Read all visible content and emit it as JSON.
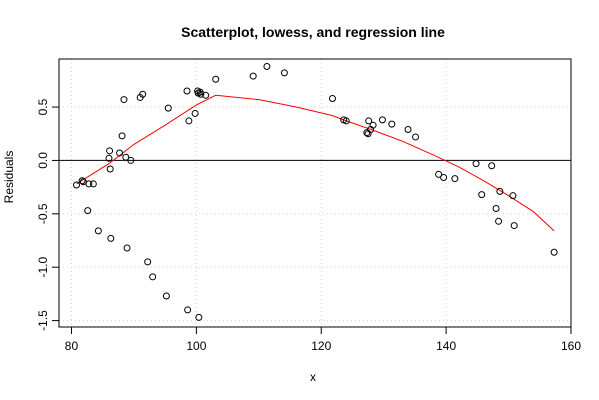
{
  "chart_data": {
    "type": "scatter",
    "title": "Scatterplot, lowess, and regression line",
    "xlabel": "x",
    "ylabel": "Residuals",
    "xlim": [
      78,
      160
    ],
    "ylim": [
      -1.56,
      0.95
    ],
    "grid": true,
    "x_ticks": [
      80,
      100,
      120,
      140,
      160
    ],
    "x_tick_labels": [
      "80",
      "100",
      "120",
      "140",
      "160"
    ],
    "y_ticks": [
      -1.5,
      -1.0,
      -0.5,
      0.0,
      0.5
    ],
    "y_tick_labels": [
      "-1.5",
      "-1.0",
      "-0.5",
      "0.0",
      "0.5"
    ],
    "colors": {
      "points": "#000000",
      "lowess": "#ff0000",
      "regression": "#000000",
      "grid": "#d3d3d3"
    },
    "regression_line": {
      "intercept": 0.0,
      "slope": 0.0
    },
    "points": [
      {
        "x": 80.8,
        "y": -0.23
      },
      {
        "x": 81.7,
        "y": -0.19
      },
      {
        "x": 81.9,
        "y": -0.2
      },
      {
        "x": 82.6,
        "y": -0.47
      },
      {
        "x": 82.8,
        "y": -0.22
      },
      {
        "x": 83.5,
        "y": -0.22
      },
      {
        "x": 84.3,
        "y": -0.66
      },
      {
        "x": 86.0,
        "y": 0.02
      },
      {
        "x": 86.1,
        "y": 0.09
      },
      {
        "x": 86.2,
        "y": -0.08
      },
      {
        "x": 86.3,
        "y": -0.73
      },
      {
        "x": 87.7,
        "y": 0.07
      },
      {
        "x": 88.1,
        "y": 0.23
      },
      {
        "x": 88.4,
        "y": 0.57
      },
      {
        "x": 88.7,
        "y": 0.03
      },
      {
        "x": 88.9,
        "y": -0.82
      },
      {
        "x": 89.5,
        "y": 0.0
      },
      {
        "x": 91.0,
        "y": 0.59
      },
      {
        "x": 91.4,
        "y": 0.62
      },
      {
        "x": 92.2,
        "y": -0.95
      },
      {
        "x": 93.0,
        "y": -1.09
      },
      {
        "x": 95.2,
        "y": -1.27
      },
      {
        "x": 95.5,
        "y": 0.49
      },
      {
        "x": 98.5,
        "y": 0.65
      },
      {
        "x": 98.6,
        "y": -1.4
      },
      {
        "x": 98.8,
        "y": 0.37
      },
      {
        "x": 99.8,
        "y": 0.44
      },
      {
        "x": 100.2,
        "y": 0.65
      },
      {
        "x": 100.3,
        "y": 0.63
      },
      {
        "x": 100.4,
        "y": -1.47
      },
      {
        "x": 100.6,
        "y": 0.64
      },
      {
        "x": 100.7,
        "y": 0.62
      },
      {
        "x": 101.5,
        "y": 0.61
      },
      {
        "x": 103.1,
        "y": 0.76
      },
      {
        "x": 109.1,
        "y": 0.79
      },
      {
        "x": 111.3,
        "y": 0.88
      },
      {
        "x": 114.1,
        "y": 0.82
      },
      {
        "x": 121.8,
        "y": 0.58
      },
      {
        "x": 123.6,
        "y": 0.38
      },
      {
        "x": 124.0,
        "y": 0.37
      },
      {
        "x": 127.3,
        "y": 0.26
      },
      {
        "x": 127.5,
        "y": 0.25
      },
      {
        "x": 127.6,
        "y": 0.37
      },
      {
        "x": 127.9,
        "y": 0.29
      },
      {
        "x": 128.3,
        "y": 0.33
      },
      {
        "x": 129.8,
        "y": 0.38
      },
      {
        "x": 131.3,
        "y": 0.34
      },
      {
        "x": 133.9,
        "y": 0.29
      },
      {
        "x": 135.1,
        "y": 0.22
      },
      {
        "x": 138.8,
        "y": -0.13
      },
      {
        "x": 139.6,
        "y": -0.16
      },
      {
        "x": 141.4,
        "y": -0.17
      },
      {
        "x": 144.8,
        "y": -0.03
      },
      {
        "x": 145.7,
        "y": -0.32
      },
      {
        "x": 147.3,
        "y": -0.05
      },
      {
        "x": 148.0,
        "y": -0.45
      },
      {
        "x": 148.4,
        "y": -0.57
      },
      {
        "x": 148.6,
        "y": -0.29
      },
      {
        "x": 150.7,
        "y": -0.33
      },
      {
        "x": 150.9,
        "y": -0.61
      },
      {
        "x": 157.3,
        "y": -0.86
      }
    ],
    "lowess": [
      {
        "x": 80.8,
        "y": -0.22
      },
      {
        "x": 86.0,
        "y": -0.03
      },
      {
        "x": 90.0,
        "y": 0.15
      },
      {
        "x": 95.0,
        "y": 0.33
      },
      {
        "x": 100.0,
        "y": 0.52
      },
      {
        "x": 103.1,
        "y": 0.61
      },
      {
        "x": 110.0,
        "y": 0.57
      },
      {
        "x": 116.0,
        "y": 0.5
      },
      {
        "x": 121.8,
        "y": 0.42
      },
      {
        "x": 124.0,
        "y": 0.37
      },
      {
        "x": 128.0,
        "y": 0.29
      },
      {
        "x": 133.0,
        "y": 0.18
      },
      {
        "x": 138.0,
        "y": 0.05
      },
      {
        "x": 142.0,
        "y": -0.06
      },
      {
        "x": 146.0,
        "y": -0.19
      },
      {
        "x": 150.0,
        "y": -0.33
      },
      {
        "x": 154.0,
        "y": -0.48
      },
      {
        "x": 157.3,
        "y": -0.66
      }
    ]
  }
}
